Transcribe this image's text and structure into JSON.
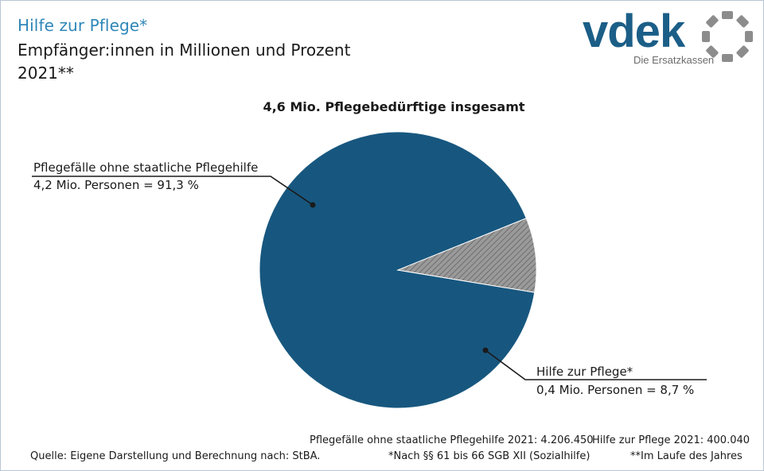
{
  "header": {
    "title": "Hilfe zur Pflege*",
    "subtitle": "Empfänger:innen in Millionen und Prozent",
    "year": "2021**"
  },
  "logo": {
    "wordmark": "vdek",
    "tagline": "Die Ersatzkassen",
    "colors": {
      "wordmark": "#1b5e87",
      "ring": "#8c8c8c"
    }
  },
  "chart_data": {
    "type": "pie",
    "title": "4,6 Mio. Pflegebedürftige insgesamt",
    "slices": [
      {
        "name": "Pflegefälle ohne staatliche Pflegehilfe",
        "value_mio": 4.2,
        "percent": 91.3,
        "value_label": "4,2 Mio. Personen = 91,3 %",
        "color": "#17577f",
        "pattern": "solid"
      },
      {
        "name": "Hilfe zur Pflege*",
        "value_mio": 0.4,
        "percent": 8.7,
        "value_label": "0,4 Mio. Personen = 8,7 %",
        "color": "#8a8a8a",
        "pattern": "hatched"
      }
    ],
    "legend": "none"
  },
  "footer": {
    "count_ohne": "Pflegefälle ohne staatliche Pflegehilfe 2021: 4.206.450",
    "count_hilfe": "Hilfe zur Pflege 2021: 400.040",
    "source": "Quelle: Eigene Darstellung und Berechnung nach: StBA.",
    "note_paragraphs": "*Nach §§ 61 bis 66 SGB XII (Sozialhilfe)",
    "note_year": "**Im Laufe des Jahres"
  }
}
